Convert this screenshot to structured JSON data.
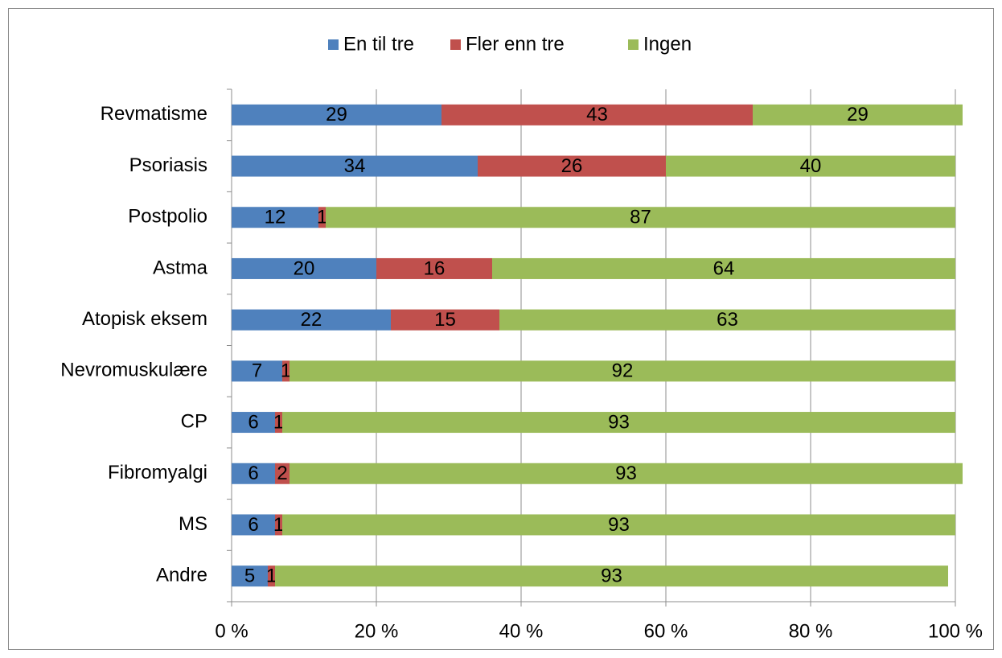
{
  "chart_data": {
    "type": "bar",
    "orientation": "horizontal",
    "stacked": true,
    "categories": [
      "Revmatisme",
      "Psoriasis",
      "Postpolio",
      "Astma",
      "Atopisk eksem",
      "Nevromuskulære",
      "CP",
      "Fibromyalgi",
      "MS",
      "Andre"
    ],
    "series": [
      {
        "name": "En til tre",
        "color": "#4f81bd",
        "values": [
          29,
          34,
          12,
          20,
          22,
          7,
          6,
          6,
          6,
          5
        ]
      },
      {
        "name": "Fler enn tre",
        "color": "#c0504d",
        "values": [
          43,
          26,
          1,
          16,
          15,
          1,
          1,
          2,
          1,
          1
        ]
      },
      {
        "name": "Ingen",
        "color": "#9bbb59",
        "values": [
          29,
          40,
          87,
          64,
          63,
          92,
          93,
          93,
          93,
          93
        ]
      }
    ],
    "xlim": [
      0,
      100
    ],
    "xticks": [
      {
        "value": 0,
        "label": "0 %"
      },
      {
        "value": 20,
        "label": "20 %"
      },
      {
        "value": 40,
        "label": "40 %"
      },
      {
        "value": 60,
        "label": "60 %"
      },
      {
        "value": 80,
        "label": "80 %"
      },
      {
        "value": 100,
        "label": "100 %"
      }
    ],
    "grid": true,
    "legend": "top",
    "data_labels": true
  }
}
